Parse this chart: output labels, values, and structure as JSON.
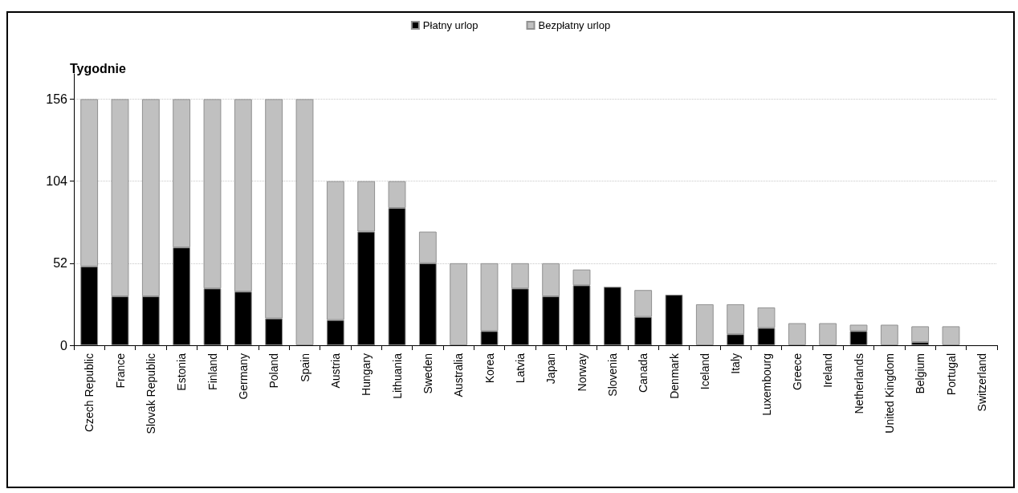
{
  "chart_data": {
    "type": "bar",
    "stacked": true,
    "ylabel": "Tygodnie",
    "categories": [
      "Czech Republic",
      "France",
      "Slovak Republic",
      "Estonia",
      "Finland",
      "Germany",
      "Poland",
      "Spain",
      "Austria",
      "Hungary",
      "Lithuania",
      "Sweden",
      "Australia",
      "Korea",
      "Latvia",
      "Japan",
      "Norway",
      "Slovenia",
      "Canada",
      "Denmark",
      "Iceland",
      "Italy",
      "Luxembourg",
      "Greece",
      "Ireland",
      "Netherlands",
      "United Kingdom",
      "Belgium",
      "Portugal",
      "Switzerland"
    ],
    "series": [
      {
        "name": "Płatny urlop",
        "color": "#000000",
        "values": [
          50,
          31,
          31,
          62,
          36,
          34,
          17,
          0,
          16,
          72,
          87,
          52,
          0,
          9,
          36,
          31,
          38,
          37,
          18,
          32,
          0,
          7,
          11,
          0,
          0,
          9,
          0,
          2,
          0,
          0
        ]
      },
      {
        "name": "Bezpłatny urlop",
        "color": "#c0c0c0",
        "values": [
          106,
          125,
          125,
          94,
          120,
          122,
          139,
          156,
          88,
          32,
          17,
          20,
          52,
          43,
          16,
          21,
          10,
          0,
          17,
          0,
          26,
          19,
          13,
          14,
          14,
          4,
          13,
          10,
          12,
          0
        ]
      }
    ],
    "ylim": [
      0,
      172
    ],
    "yticks": [
      0,
      52,
      104,
      156
    ],
    "grid": "y",
    "legend": "top"
  }
}
